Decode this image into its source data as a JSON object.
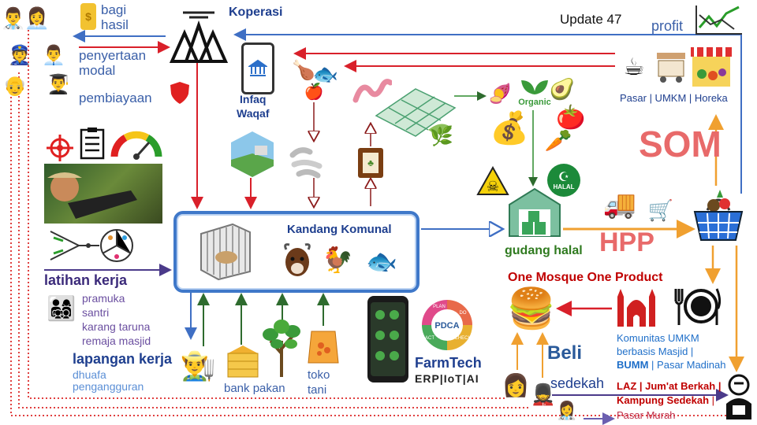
{
  "header": {
    "update": "Update 47",
    "koperasi": "Koperasi"
  },
  "funding": {
    "bagi_hasil": "bagi\nhasil",
    "penyertaan_modal": "penyertaan\nmodal",
    "pembiayaan": "pembiayaan"
  },
  "profit": "profit",
  "infaq_waqaf": "Infaq\nWaqaf",
  "organic": "Organic",
  "halal": "HALAL",
  "market": {
    "pasar": "Pasar | UMKM | Horeka",
    "som": "SOM",
    "hpp": "HPP"
  },
  "kandang": {
    "title": "Kandang Komunal"
  },
  "gudang": "gudang halal",
  "omop": "One Mosque One Product",
  "latihan": {
    "title": "latihan kerja",
    "items": [
      "pramuka",
      "santri",
      "karang taruna",
      "remaja masjid"
    ]
  },
  "lapangan": {
    "title": "lapangan kerja",
    "items": [
      "dhuafa",
      "pengangguran"
    ]
  },
  "supply": {
    "bank_pakan": "bank pakan",
    "toko_tani": "toko\ntani"
  },
  "farmtech": {
    "title": "FarmTech",
    "subtitle": "ERP|IoT|AI",
    "pdca": "PDCA",
    "ring": [
      "PLAN",
      "DO",
      "CHECK",
      "ACT"
    ]
  },
  "komunitas": {
    "line1": "Komunitas UMKM",
    "line2": "berbasis Masjid |",
    "bumm": "BUMM",
    "line3_rest": " | Pasar Madinah"
  },
  "beli": "Beli",
  "sedekah": "sedekah",
  "laz": {
    "line1": "LAZ |  Jum'at Berkah |",
    "kampung": "Kampung Sedekah",
    "sep": " |",
    "line3": "Pasar Murah"
  },
  "colors": {
    "blue_arrow": "#3f6fc4",
    "red_arrow": "#d9202a",
    "green_arrow": "#2e6b2e",
    "orange_arrow": "#f0a030",
    "darkred_arrow": "#8b1a1a"
  }
}
